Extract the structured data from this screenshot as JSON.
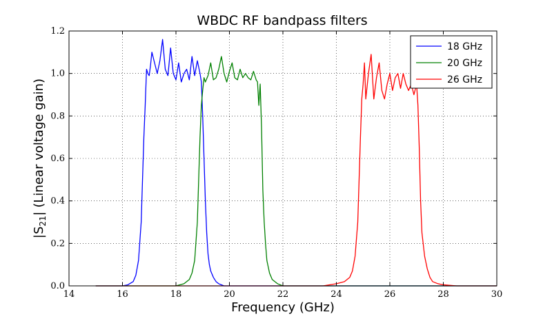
{
  "chart_data": {
    "type": "line",
    "title": "WBDC RF bandpass filters",
    "xlabel": "Frequency (GHz)",
    "ylabel": "|S21| (Linear voltage gain)",
    "ylabel_parts": {
      "prefix": "|S",
      "subscript": "21",
      "suffix": "| (Linear voltage gain)"
    },
    "xlim": [
      14,
      30
    ],
    "ylim": [
      0.0,
      1.2
    ],
    "xticks": [
      14,
      16,
      18,
      20,
      22,
      24,
      26,
      28,
      30
    ],
    "yticks": [
      "0.0",
      "0.2",
      "0.4",
      "0.6",
      "0.8",
      "1.0",
      "1.2"
    ],
    "grid": true,
    "legend_position": "top-right",
    "series": [
      {
        "name": "18 GHz",
        "color": "#0000ff",
        "x": [
          15.0,
          15.5,
          16.0,
          16.2,
          16.4,
          16.5,
          16.6,
          16.7,
          16.75,
          16.8,
          16.85,
          16.9,
          16.95,
          17.0,
          17.05,
          17.1,
          17.2,
          17.3,
          17.4,
          17.5,
          17.6,
          17.7,
          17.8,
          17.9,
          18.0,
          18.1,
          18.2,
          18.3,
          18.4,
          18.5,
          18.6,
          18.7,
          18.8,
          18.9,
          18.95,
          19.0,
          19.05,
          19.1,
          19.15,
          19.2,
          19.25,
          19.3,
          19.4,
          19.5,
          19.6,
          19.7,
          19.8,
          20.0,
          21.0,
          24.0,
          27.0,
          30.0
        ],
        "y": [
          0.0,
          0.0,
          0.0,
          0.005,
          0.02,
          0.05,
          0.12,
          0.3,
          0.5,
          0.7,
          0.85,
          1.02,
          1.0,
          0.99,
          1.04,
          1.1,
          1.05,
          1.0,
          1.06,
          1.16,
          1.02,
          0.99,
          1.12,
          1.0,
          0.97,
          1.05,
          0.96,
          1.0,
          1.02,
          0.97,
          1.08,
          0.99,
          1.06,
          1.0,
          0.96,
          0.8,
          0.6,
          0.4,
          0.25,
          0.15,
          0.1,
          0.07,
          0.04,
          0.02,
          0.01,
          0.005,
          0.0,
          0.0,
          0.0,
          0.0,
          0.0,
          0.0
        ]
      },
      {
        "name": "20 GHz",
        "color": "#008000",
        "x": [
          15.0,
          17.0,
          18.0,
          18.3,
          18.5,
          18.6,
          18.7,
          18.8,
          18.85,
          18.9,
          18.95,
          19.0,
          19.05,
          19.1,
          19.2,
          19.3,
          19.4,
          19.5,
          19.6,
          19.7,
          19.8,
          19.9,
          20.0,
          20.1,
          20.2,
          20.3,
          20.4,
          20.5,
          20.6,
          20.7,
          20.8,
          20.9,
          21.0,
          21.05,
          21.1,
          21.15,
          21.2,
          21.25,
          21.3,
          21.35,
          21.4,
          21.5,
          21.6,
          21.8,
          22.0,
          23.0,
          30.0
        ],
        "y": [
          0.0,
          0.0,
          0.0,
          0.01,
          0.03,
          0.06,
          0.12,
          0.3,
          0.5,
          0.7,
          0.85,
          0.92,
          0.98,
          0.96,
          0.99,
          1.05,
          0.97,
          0.98,
          1.02,
          1.08,
          1.0,
          0.96,
          1.01,
          1.05,
          0.98,
          0.97,
          1.02,
          0.98,
          1.0,
          0.98,
          0.97,
          1.01,
          0.97,
          0.96,
          0.85,
          0.95,
          0.75,
          0.45,
          0.3,
          0.2,
          0.12,
          0.06,
          0.03,
          0.01,
          0.0,
          0.0,
          0.0
        ]
      },
      {
        "name": "26 GHz",
        "color": "#ff0000",
        "x": [
          15.0,
          20.0,
          23.5,
          24.0,
          24.3,
          24.5,
          24.6,
          24.7,
          24.8,
          24.85,
          24.9,
          24.95,
          25.0,
          25.05,
          25.1,
          25.2,
          25.3,
          25.4,
          25.5,
          25.6,
          25.7,
          25.8,
          25.9,
          26.0,
          26.1,
          26.2,
          26.3,
          26.4,
          26.5,
          26.6,
          26.7,
          26.8,
          26.9,
          27.0,
          27.05,
          27.1,
          27.15,
          27.2,
          27.3,
          27.4,
          27.5,
          27.6,
          27.8,
          28.0,
          28.5,
          29.0,
          30.0
        ],
        "y": [
          0.0,
          0.0,
          0.0,
          0.01,
          0.02,
          0.04,
          0.07,
          0.14,
          0.3,
          0.5,
          0.7,
          0.88,
          0.95,
          1.05,
          0.88,
          1.0,
          1.09,
          0.88,
          0.98,
          1.05,
          0.92,
          0.88,
          0.95,
          1.0,
          0.92,
          0.98,
          1.0,
          0.93,
          1.0,
          0.95,
          0.92,
          0.95,
          0.9,
          0.95,
          0.85,
          0.65,
          0.4,
          0.25,
          0.14,
          0.08,
          0.04,
          0.02,
          0.01,
          0.005,
          0.0,
          0.0,
          0.0
        ]
      }
    ]
  }
}
